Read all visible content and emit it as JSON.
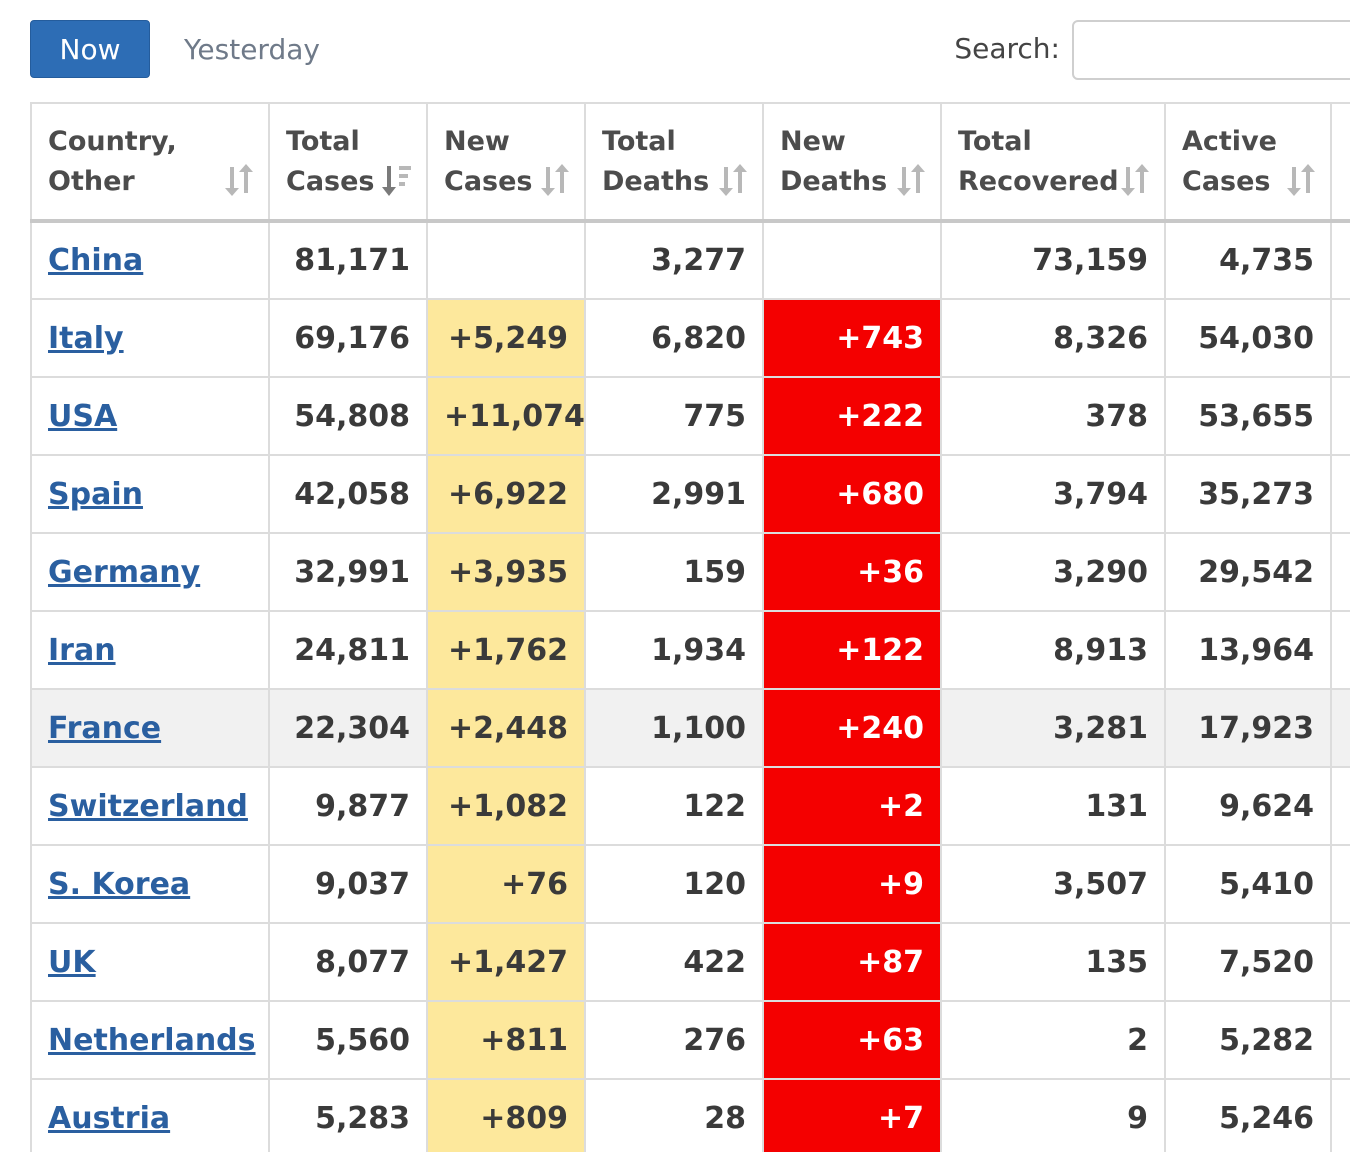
{
  "tabs": {
    "now": "Now",
    "yesterday": "Yesterday"
  },
  "search": {
    "label": "Search:",
    "value": ""
  },
  "colors": {
    "accent": "#2d6db5",
    "new_cases_bg": "#fde89c",
    "new_deaths_bg": "#f40000",
    "link": "#2a5fa0"
  },
  "columns": [
    {
      "label": "Country, Other",
      "sort_icon": "sort-both-icon"
    },
    {
      "label": "Total Cases",
      "sort_icon": "sort-desc-icon"
    },
    {
      "label": "New Cases",
      "sort_icon": "sort-both-icon"
    },
    {
      "label": "Total Deaths",
      "sort_icon": "sort-both-icon"
    },
    {
      "label": "New Deaths",
      "sort_icon": "sort-both-icon"
    },
    {
      "label": "Total Recovered",
      "sort_icon": "sort-both-icon"
    },
    {
      "label": "Active Cases",
      "sort_icon": "sort-both-icon"
    },
    {
      "label": "",
      "sort_icon": "sort-both-icon"
    }
  ],
  "rows": [
    {
      "country": "China",
      "total_cases": "81,171",
      "new_cases": "",
      "total_deaths": "3,277",
      "new_deaths": "",
      "total_recovered": "73,159",
      "active_cases": "4,735"
    },
    {
      "country": "Italy",
      "total_cases": "69,176",
      "new_cases": "+5,249",
      "total_deaths": "6,820",
      "new_deaths": "+743",
      "total_recovered": "8,326",
      "active_cases": "54,030"
    },
    {
      "country": "USA",
      "total_cases": "54,808",
      "new_cases": "+11,074",
      "total_deaths": "775",
      "new_deaths": "+222",
      "total_recovered": "378",
      "active_cases": "53,655"
    },
    {
      "country": "Spain",
      "total_cases": "42,058",
      "new_cases": "+6,922",
      "total_deaths": "2,991",
      "new_deaths": "+680",
      "total_recovered": "3,794",
      "active_cases": "35,273"
    },
    {
      "country": "Germany",
      "total_cases": "32,991",
      "new_cases": "+3,935",
      "total_deaths": "159",
      "new_deaths": "+36",
      "total_recovered": "3,290",
      "active_cases": "29,542"
    },
    {
      "country": "Iran",
      "total_cases": "24,811",
      "new_cases": "+1,762",
      "total_deaths": "1,934",
      "new_deaths": "+122",
      "total_recovered": "8,913",
      "active_cases": "13,964"
    },
    {
      "country": "France",
      "total_cases": "22,304",
      "new_cases": "+2,448",
      "total_deaths": "1,100",
      "new_deaths": "+240",
      "total_recovered": "3,281",
      "active_cases": "17,923",
      "highlight": true
    },
    {
      "country": "Switzerland",
      "total_cases": "9,877",
      "new_cases": "+1,082",
      "total_deaths": "122",
      "new_deaths": "+2",
      "total_recovered": "131",
      "active_cases": "9,624"
    },
    {
      "country": "S. Korea",
      "total_cases": "9,037",
      "new_cases": "+76",
      "total_deaths": "120",
      "new_deaths": "+9",
      "total_recovered": "3,507",
      "active_cases": "5,410"
    },
    {
      "country": "UK",
      "total_cases": "8,077",
      "new_cases": "+1,427",
      "total_deaths": "422",
      "new_deaths": "+87",
      "total_recovered": "135",
      "active_cases": "7,520"
    },
    {
      "country": "Netherlands",
      "total_cases": "5,560",
      "new_cases": "+811",
      "total_deaths": "276",
      "new_deaths": "+63",
      "total_recovered": "2",
      "active_cases": "5,282"
    },
    {
      "country": "Austria",
      "total_cases": "5,283",
      "new_cases": "+809",
      "total_deaths": "28",
      "new_deaths": "+7",
      "total_recovered": "9",
      "active_cases": "5,246"
    }
  ]
}
